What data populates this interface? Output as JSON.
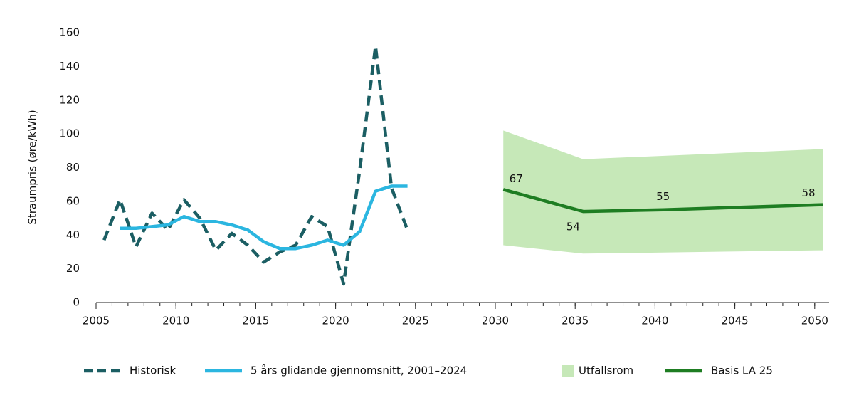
{
  "chart_data": {
    "type": "line",
    "y_label": "Straumpris (øre/kWh)",
    "xlim": [
      2005,
      2050.9
    ],
    "ylim": [
      0,
      160
    ],
    "xticks": [
      2005,
      2010,
      2015,
      2020,
      2025,
      2030,
      2035,
      2040,
      2045,
      2050
    ],
    "yticks": [
      0,
      20,
      40,
      60,
      80,
      100,
      120,
      140,
      160
    ],
    "series": [
      {
        "name": "Historisk",
        "color": "#1b5e63",
        "style": "dashed",
        "x": [
          2005.5,
          2006.5,
          2007.5,
          2008.5,
          2009.5,
          2010.5,
          2011.5,
          2012.5,
          2013.5,
          2014.5,
          2015.5,
          2016.5,
          2017.5,
          2018.5,
          2019.5,
          2020.5,
          2021.5,
          2022.5,
          2023.5,
          2024.5
        ],
        "values": [
          37,
          61,
          33,
          53,
          43,
          61,
          50,
          31,
          41,
          34,
          24,
          30,
          34,
          51,
          45,
          11,
          78,
          152,
          68,
          43
        ]
      },
      {
        "name": "5 års glidande gjennomsnitt, 2001–2024",
        "color": "#2bb6e0",
        "style": "solid",
        "x": [
          2006.5,
          2007.5,
          2008.5,
          2009.5,
          2010.5,
          2011.5,
          2012.5,
          2013.5,
          2014.5,
          2015.5,
          2016.5,
          2017.5,
          2018.5,
          2019.5,
          2020.5,
          2021.5,
          2022.5,
          2023.5,
          2024.5
        ],
        "values": [
          44,
          44,
          45,
          46,
          51,
          48,
          48,
          46,
          43,
          36,
          32,
          32,
          34,
          37,
          34,
          42,
          66,
          69,
          69
        ]
      },
      {
        "name": "Utfallsrom",
        "color": "#c6e8b8",
        "kind": "band",
        "x": [
          2030.5,
          2035.5,
          2050.5
        ],
        "values": [
          102,
          85,
          91
        ],
        "lower": [
          34,
          29,
          31
        ]
      },
      {
        "name": "Basis LA 25",
        "color": "#1e7d22",
        "style": "solid",
        "x": [
          2030.5,
          2035.5,
          2040.5,
          2050.5
        ],
        "values": [
          67,
          54,
          55,
          58
        ]
      }
    ]
  }
}
